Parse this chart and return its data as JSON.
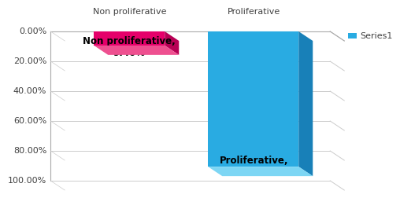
{
  "categories": [
    "Non proliferative",
    "Proliferative"
  ],
  "values": [
    9.4,
    90.6
  ],
  "bar_labels": [
    "Non proliferative,\n9.40%",
    "Proliferative,\n90.60%"
  ],
  "bar_colors_front": [
    "#E8006A",
    "#29ABE2"
  ],
  "bar_colors_top": [
    "#F06090",
    "#7DD8F5"
  ],
  "bar_colors_side": [
    "#B00050",
    "#1890C0"
  ],
  "yticks": [
    0.0,
    20.0,
    40.0,
    60.0,
    80.0,
    100.0
  ],
  "ytick_labels": [
    "0.00%",
    "20.00%",
    "40.00%",
    "60.00%",
    "80.00%",
    "100.00%"
  ],
  "legend_label": "Series1",
  "background_color": "#ffffff",
  "label_fontsize": 8.5,
  "tick_fontsize": 8,
  "cat_fontsize": 8,
  "legend_fontsize": 8
}
